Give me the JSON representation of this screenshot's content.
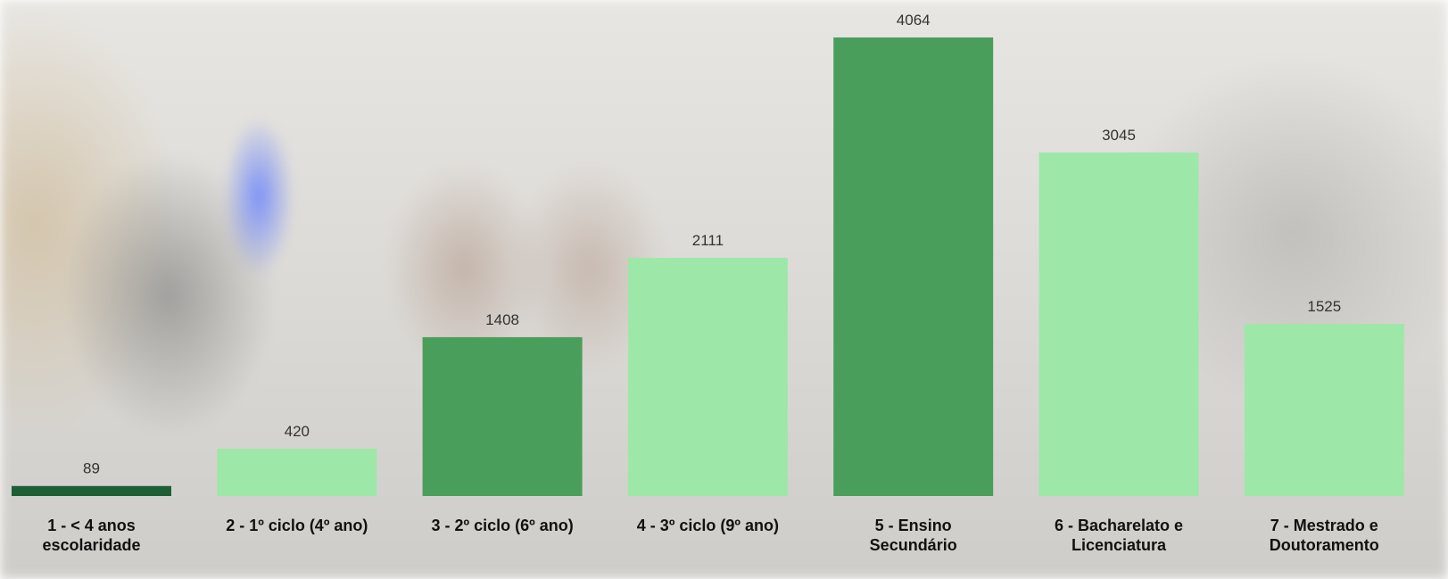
{
  "chart_data": {
    "type": "bar",
    "categories": [
      "1 - < 4 anos\nescolaridade",
      "2 - 1º ciclo (4º ano)",
      "3 - 2º ciclo (6º ano)",
      "4 - 3º ciclo (9º ano)",
      "5 - Ensino\nSecundário",
      "6 - Bacharelato e\nLicenciatura",
      "7 - Mestrado e\nDoutoramento"
    ],
    "values": [
      89,
      420,
      1408,
      2111,
      4064,
      3045,
      1525
    ],
    "colors": [
      "#1d5f34",
      "#9de8a8",
      "#4a9e5c",
      "#9de8a8",
      "#4a9e5c",
      "#9de8a8",
      "#9de8a8"
    ]
  }
}
